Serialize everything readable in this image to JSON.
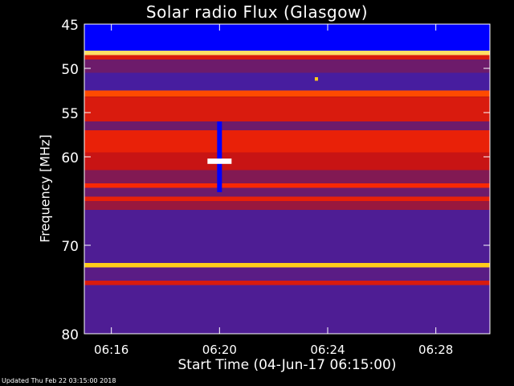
{
  "header": {
    "title": "Solar radio Flux (Glasgow)"
  },
  "footer": {
    "updated": "Updated Thu Feb 22 03:15:00 2018"
  },
  "chart_data": {
    "type": "heatmap",
    "title": "Solar radio Flux (Glasgow)",
    "xlabel": "Start Time (04-Jun-17 06:15:00)",
    "ylabel": "Frequency [MHz]",
    "x_unit": "time (HH:MM)",
    "xlim": [
      "06:15:00",
      "06:30:00"
    ],
    "ylim": [
      45,
      80
    ],
    "y_inverted": true,
    "x_ticks": [
      "06:16",
      "06:20",
      "06:24",
      "06:28"
    ],
    "y_ticks": [
      45,
      50,
      55,
      60,
      70,
      80
    ],
    "colormap": [
      "#0000ff",
      "#3a1eb0",
      "#7a1a5a",
      "#c81414",
      "#ff2a00",
      "#ffc800",
      "#ffffff"
    ],
    "bands": [
      {
        "from": 45.0,
        "to": 48.0,
        "level": 0.0
      },
      {
        "from": 48.0,
        "to": 48.5,
        "level": 0.9
      },
      {
        "from": 48.5,
        "to": 49.0,
        "level": 0.55
      },
      {
        "from": 49.0,
        "to": 50.5,
        "level": 0.3
      },
      {
        "from": 50.5,
        "to": 52.5,
        "level": 0.2
      },
      {
        "from": 52.5,
        "to": 53.2,
        "level": 0.7
      },
      {
        "from": 53.2,
        "to": 56.0,
        "level": 0.55
      },
      {
        "from": 56.0,
        "to": 57.0,
        "level": 0.3
      },
      {
        "from": 57.0,
        "to": 59.5,
        "level": 0.6
      },
      {
        "from": 59.5,
        "to": 61.5,
        "level": 0.5
      },
      {
        "from": 61.5,
        "to": 63.0,
        "level": 0.35
      },
      {
        "from": 63.0,
        "to": 63.5,
        "level": 0.65
      },
      {
        "from": 63.5,
        "to": 64.5,
        "level": 0.3
      },
      {
        "from": 64.5,
        "to": 65.0,
        "level": 0.6
      },
      {
        "from": 65.0,
        "to": 66.0,
        "level": 0.4
      },
      {
        "from": 66.0,
        "to": 72.0,
        "level": 0.22
      },
      {
        "from": 72.0,
        "to": 72.5,
        "level": 0.85
      },
      {
        "from": 72.5,
        "to": 74.0,
        "level": 0.25
      },
      {
        "from": 74.0,
        "to": 74.5,
        "level": 0.55
      },
      {
        "from": 74.5,
        "to": 80.0,
        "level": 0.22
      }
    ],
    "features": [
      {
        "label": "burst",
        "time": "06:20:00",
        "from": 56.0,
        "to": 64.0,
        "level": 0.0
      },
      {
        "label": "burst-core",
        "time": "06:20:00",
        "from": 60.2,
        "to": 60.8,
        "level": 1.0
      },
      {
        "label": "spot",
        "time": "06:23:35",
        "from": 51.0,
        "to": 51.4,
        "level": 0.85
      }
    ]
  }
}
